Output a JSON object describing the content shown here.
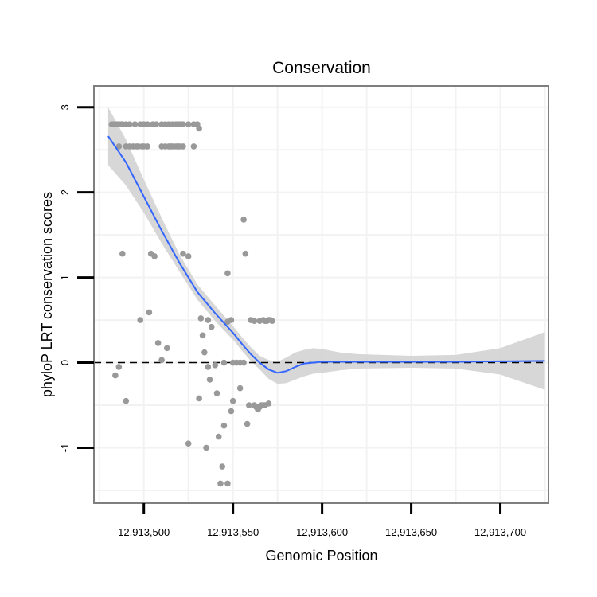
{
  "chart_data": {
    "type": "scatter",
    "title": "Conservation",
    "xlabel": "Genomic Position",
    "ylabel": "phyloP LRT conservation scores",
    "xlim": [
      12913472,
      12913727
    ],
    "ylim": [
      -1.65,
      3.25
    ],
    "x_ticks": [
      12913500,
      12913550,
      12913600,
      12913650,
      12913700
    ],
    "x_tick_labels": [
      "12,913,500",
      "12,913,550",
      "12,913,600",
      "12,913,650",
      "12,913,700"
    ],
    "y_ticks": [
      -1,
      0,
      1,
      2,
      3
    ],
    "y_tick_labels": [
      "-1",
      "0",
      "1",
      "2",
      "3"
    ],
    "reference_line": 0,
    "colors": {
      "points": "#999999",
      "smooth": "#3366FF",
      "band": "#D3D3D3",
      "panel_border": "#7F7F7F",
      "grid": "#F2F2F2"
    },
    "points": [
      [
        12913482,
        2.8
      ],
      [
        12913483,
        2.8
      ],
      [
        12913484,
        2.8
      ],
      [
        12913485,
        2.8
      ],
      [
        12913486,
        2.8
      ],
      [
        12913487,
        2.8
      ],
      [
        12913488,
        2.8
      ],
      [
        12913490,
        2.8
      ],
      [
        12913492,
        2.8
      ],
      [
        12913495,
        2.8
      ],
      [
        12913498,
        2.8
      ],
      [
        12913500,
        2.8
      ],
      [
        12913502,
        2.8
      ],
      [
        12913505,
        2.8
      ],
      [
        12913507,
        2.8
      ],
      [
        12913510,
        2.8
      ],
      [
        12913512,
        2.8
      ],
      [
        12913514,
        2.8
      ],
      [
        12913516,
        2.8
      ],
      [
        12913518,
        2.8
      ],
      [
        12913519,
        2.8
      ],
      [
        12913520,
        2.8
      ],
      [
        12913521,
        2.8
      ],
      [
        12913522,
        2.8
      ],
      [
        12913525,
        2.8
      ],
      [
        12913528,
        2.8
      ],
      [
        12913530,
        2.8
      ],
      [
        12913531,
        2.75
      ],
      [
        12913486,
        2.54
      ],
      [
        12913490,
        2.54
      ],
      [
        12913492,
        2.54
      ],
      [
        12913494,
        2.54
      ],
      [
        12913496,
        2.54
      ],
      [
        12913497,
        2.54
      ],
      [
        12913499,
        2.54
      ],
      [
        12913500,
        2.54
      ],
      [
        12913502,
        2.54
      ],
      [
        12913510,
        2.54
      ],
      [
        12913512,
        2.54
      ],
      [
        12913514,
        2.54
      ],
      [
        12913515,
        2.54
      ],
      [
        12913516,
        2.54
      ],
      [
        12913518,
        2.54
      ],
      [
        12913519,
        2.54
      ],
      [
        12913520,
        2.54
      ],
      [
        12913522,
        2.54
      ],
      [
        12913528,
        2.54
      ],
      [
        12913488,
        1.28
      ],
      [
        12913504,
        1.28
      ],
      [
        12913506,
        1.25
      ],
      [
        12913522,
        1.28
      ],
      [
        12913525,
        1.25
      ],
      [
        12913547,
        1.05
      ],
      [
        12913556,
        1.68
      ],
      [
        12913557,
        1.28
      ],
      [
        12913498,
        0.5
      ],
      [
        12913503,
        0.59
      ],
      [
        12913508,
        0.23
      ],
      [
        12913510,
        0.03
      ],
      [
        12913513,
        0.17
      ],
      [
        12913532,
        0.52
      ],
      [
        12913536,
        0.5
      ],
      [
        12913538,
        0.42
      ],
      [
        12913547,
        0.48
      ],
      [
        12913549,
        0.5
      ],
      [
        12913533,
        0.32
      ],
      [
        12913534,
        0.12
      ],
      [
        12913536,
        -0.05
      ],
      [
        12913540,
        -0.03
      ],
      [
        12913545,
        0.0
      ],
      [
        12913550,
        0.0
      ],
      [
        12913552,
        0.0
      ],
      [
        12913554,
        0.0
      ],
      [
        12913556,
        0.0
      ],
      [
        12913560,
        0.5
      ],
      [
        12913562,
        0.49
      ],
      [
        12913565,
        0.49
      ],
      [
        12913567,
        0.5
      ],
      [
        12913568,
        0.49
      ],
      [
        12913569,
        0.49
      ],
      [
        12913570,
        0.5
      ],
      [
        12913571,
        0.5
      ],
      [
        12913572,
        0.49
      ],
      [
        12913484,
        -0.15
      ],
      [
        12913486,
        -0.05
      ],
      [
        12913490,
        -0.45
      ],
      [
        12913525,
        -0.95
      ],
      [
        12913531,
        -0.42
      ],
      [
        12913535,
        -1.0
      ],
      [
        12913537,
        -0.2
      ],
      [
        12913541,
        -0.36
      ],
      [
        12913542,
        -0.87
      ],
      [
        12913544,
        -1.22
      ],
      [
        12913543,
        -1.42
      ],
      [
        12913545,
        -0.74
      ],
      [
        12913547,
        -1.42
      ],
      [
        12913549,
        -0.57
      ],
      [
        12913550,
        -0.45
      ],
      [
        12913554,
        -0.3
      ],
      [
        12913558,
        -0.72
      ],
      [
        12913559,
        -0.5
      ],
      [
        12913562,
        -0.5
      ],
      [
        12913563,
        -0.52
      ],
      [
        12913564,
        -0.55
      ],
      [
        12913565,
        -0.52
      ],
      [
        12913566,
        -0.5
      ],
      [
        12913567,
        -0.5
      ],
      [
        12913568,
        -0.5
      ],
      [
        12913570,
        -0.48
      ]
    ],
    "smooth": [
      [
        12913480,
        2.66
      ],
      [
        12913490,
        2.35
      ],
      [
        12913500,
        1.95
      ],
      [
        12913510,
        1.55
      ],
      [
        12913520,
        1.17
      ],
      [
        12913530,
        0.83
      ],
      [
        12913540,
        0.58
      ],
      [
        12913550,
        0.35
      ],
      [
        12913555,
        0.22
      ],
      [
        12913560,
        0.1
      ],
      [
        12913565,
        0.0
      ],
      [
        12913570,
        -0.08
      ],
      [
        12913575,
        -0.12
      ],
      [
        12913580,
        -0.1
      ],
      [
        12913585,
        -0.05
      ],
      [
        12913590,
        -0.01
      ],
      [
        12913600,
        0.01
      ],
      [
        12913620,
        0.01
      ],
      [
        12913650,
        0.01
      ],
      [
        12913675,
        0.01
      ],
      [
        12913700,
        0.015
      ],
      [
        12913725,
        0.02
      ]
    ],
    "band_upper": [
      [
        12913480,
        3.0
      ],
      [
        12913490,
        2.62
      ],
      [
        12913500,
        2.15
      ],
      [
        12913510,
        1.7
      ],
      [
        12913520,
        1.27
      ],
      [
        12913530,
        0.92
      ],
      [
        12913540,
        0.67
      ],
      [
        12913550,
        0.43
      ],
      [
        12913555,
        0.3
      ],
      [
        12913560,
        0.18
      ],
      [
        12913565,
        0.08
      ],
      [
        12913570,
        0.03
      ],
      [
        12913575,
        0.01
      ],
      [
        12913580,
        0.06
      ],
      [
        12913585,
        0.12
      ],
      [
        12913590,
        0.15
      ],
      [
        12913595,
        0.17
      ],
      [
        12913600,
        0.16
      ],
      [
        12913610,
        0.12
      ],
      [
        12913620,
        0.1
      ],
      [
        12913650,
        0.08
      ],
      [
        12913675,
        0.09
      ],
      [
        12913700,
        0.17
      ],
      [
        12913725,
        0.36
      ]
    ],
    "band_lower": [
      [
        12913480,
        2.32
      ],
      [
        12913490,
        2.08
      ],
      [
        12913500,
        1.76
      ],
      [
        12913510,
        1.4
      ],
      [
        12913520,
        1.07
      ],
      [
        12913530,
        0.74
      ],
      [
        12913540,
        0.49
      ],
      [
        12913550,
        0.27
      ],
      [
        12913555,
        0.14
      ],
      [
        12913560,
        0.02
      ],
      [
        12913565,
        -0.08
      ],
      [
        12913570,
        -0.19
      ],
      [
        12913575,
        -0.25
      ],
      [
        12913580,
        -0.24
      ],
      [
        12913585,
        -0.2
      ],
      [
        12913590,
        -0.16
      ],
      [
        12913595,
        -0.13
      ],
      [
        12913600,
        -0.12
      ],
      [
        12913610,
        -0.09
      ],
      [
        12913620,
        -0.07
      ],
      [
        12913650,
        -0.06
      ],
      [
        12913675,
        -0.07
      ],
      [
        12913700,
        -0.14
      ],
      [
        12913725,
        -0.32
      ]
    ]
  }
}
